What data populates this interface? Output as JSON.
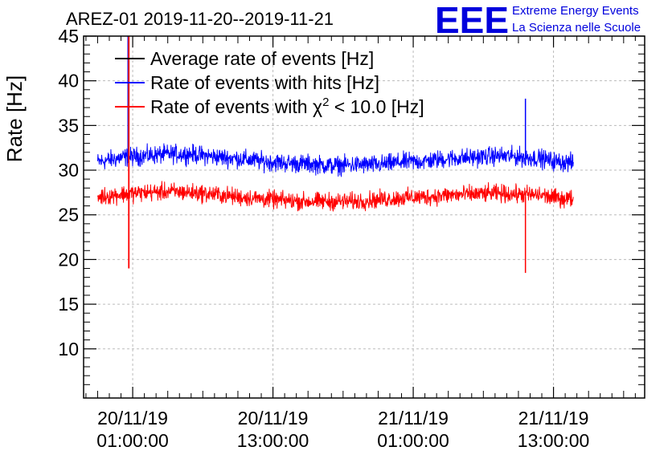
{
  "colors": {
    "average": "#000000",
    "hits": "#0000ff",
    "chi2": "#ff0000",
    "logo": "#0000dd",
    "grid": "#bbbbbb"
  },
  "logo": {
    "mark": "EEE",
    "line1": "Extreme Energy Events",
    "line2": "La Scienza nelle Scuole"
  },
  "chart_data": {
    "type": "line",
    "title": "AREZ-01 2019-11-20--2019-11-21",
    "ylabel": "Rate [Hz]",
    "xlabel": "",
    "ylim": [
      4.5,
      45
    ],
    "xlim_hours": [
      -4.2,
      43.8
    ],
    "grid": true,
    "legend_position": "top-left",
    "y_ticks": [
      10,
      15,
      20,
      25,
      30,
      35,
      40,
      45
    ],
    "x_ticks": [
      {
        "at_hours": 0,
        "date": "20/11/19",
        "time": "01:00:00"
      },
      {
        "at_hours": 12,
        "date": "20/11/19",
        "time": "13:00:00"
      },
      {
        "at_hours": 24,
        "date": "21/11/19",
        "time": "01:00:00"
      },
      {
        "at_hours": 36,
        "date": "21/11/19",
        "time": "13:00:00"
      }
    ],
    "series": [
      {
        "key": "average",
        "legend": "Average rate of events [Hz]",
        "x_hours": [],
        "values": []
      },
      {
        "key": "hits",
        "legend": "Rate of events with hits [Hz]",
        "x_hours": [
          -3.0,
          -1.0,
          1.0,
          3.0,
          5.0,
          7.0,
          9.0,
          11.0,
          13.0,
          15.0,
          17.0,
          19.0,
          21.0,
          23.0,
          25.0,
          27.0,
          29.0,
          31.0,
          33.0,
          35.0,
          36.0,
          37.7
        ],
        "values": [
          30.9,
          31.4,
          31.6,
          31.8,
          31.8,
          31.5,
          31.3,
          31.0,
          30.8,
          30.7,
          30.5,
          30.6,
          30.6,
          30.9,
          31.0,
          31.3,
          31.4,
          31.6,
          31.5,
          31.3,
          31.0,
          30.8
        ],
        "spike": {
          "x_hours": 33.6,
          "high": 38.0
        }
      },
      {
        "key": "chi2",
        "legend_prefix": "Rate of events with ",
        "legend_symbol": "χ",
        "legend_sup": "2",
        "legend_suffix": " < 10.0 [Hz]",
        "x_hours": [
          -3.0,
          -1.0,
          1.0,
          3.0,
          5.0,
          7.0,
          9.0,
          11.0,
          13.0,
          15.0,
          17.0,
          19.0,
          21.0,
          23.0,
          25.0,
          27.0,
          29.0,
          31.0,
          33.0,
          35.0,
          36.0,
          37.7
        ],
        "values": [
          27.0,
          27.3,
          27.5,
          27.6,
          27.5,
          27.3,
          27.0,
          26.8,
          26.6,
          26.5,
          26.5,
          26.5,
          26.7,
          26.9,
          27.0,
          27.2,
          27.3,
          27.4,
          27.3,
          27.2,
          26.9,
          26.8
        ],
        "spike": {
          "x_hours": -0.4,
          "high": 45.0,
          "low": 19.0
        },
        "spike2": {
          "x_hours": 33.6,
          "low": 18.5
        }
      }
    ]
  }
}
